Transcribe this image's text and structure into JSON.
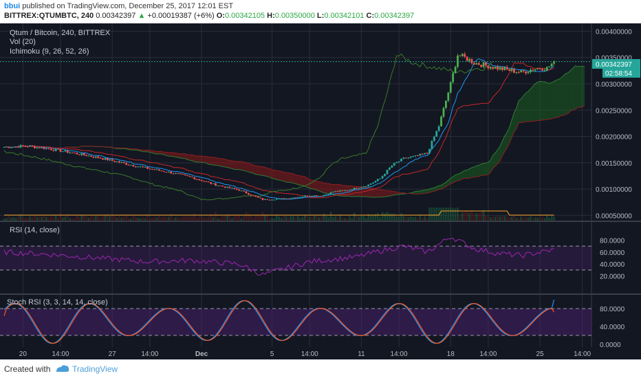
{
  "header": {
    "user": "bbui",
    "published_text": "published on TradingView.com, December 25, 2017 12:01 EST",
    "symbol": "BITTREX:QTUMBTC, 240",
    "last": "0.00342397",
    "change": "+0.00019387 (+6%)",
    "o_label": "O:",
    "o": "0.00342105",
    "h_label": "H:",
    "h": "0.00350000",
    "l_label": "L:",
    "l": "0.00342101",
    "c_label": "C:",
    "c": "0.00342397"
  },
  "legend": {
    "title": "Qtum / Bitcoin, 240, BITTREX",
    "vol": "Vol (20)",
    "ichimoku": "Ichimoku (9, 26, 52, 26)",
    "rsi": "RSI (14, close)",
    "stoch": "Stoch RSI (3, 3, 14, 14, close)"
  },
  "price_axis": {
    "ticks": [
      "0.00400000",
      "0.00350000",
      "0.00300000",
      "0.00250000",
      "0.00200000",
      "0.00150000",
      "0.00100000",
      "0.00050000"
    ],
    "tick_values": [
      0.004,
      0.0035,
      0.003,
      0.0025,
      0.002,
      0.0015,
      0.001,
      0.0005
    ],
    "last_price_label": "0.00342397",
    "countdown_label": "02:58:54"
  },
  "rsi_axis": {
    "ticks": [
      "80.0000",
      "60.0000",
      "40.0000",
      "20.0000"
    ],
    "tick_values": [
      80,
      60,
      40,
      20
    ],
    "bands": [
      70,
      30
    ]
  },
  "stoch_axis": {
    "ticks": [
      "80.0000",
      "40.0000",
      "0.0000"
    ],
    "tick_values": [
      80,
      40,
      0
    ],
    "bands": [
      80,
      20
    ]
  },
  "time_axis": {
    "labels": [
      "20",
      "14:00",
      "27",
      "14:00",
      "Dec",
      "5",
      "14:00",
      "11",
      "14:00",
      "18",
      "14:00",
      "25",
      "14:00"
    ],
    "label_index": [
      8,
      24,
      46,
      62,
      84,
      114,
      130,
      152,
      168,
      190,
      206,
      228,
      246
    ]
  },
  "colors": {
    "background": "#131722",
    "grid": "#2a2e39",
    "up": "#26a69a",
    "up_strong": "#4caf50",
    "down": "#ef5350",
    "tenkan": "#2196f3",
    "kijun": "#c62828",
    "lagging": "#3a7a2a",
    "cloud_green": "#1b5e20",
    "cloud_red": "#8b1a1a",
    "rsi_line": "#9c27b0",
    "stoch_k": "#2196f3",
    "stoch_d": "#ff5722",
    "volume": "#ffa726",
    "last_price": "#26a69a"
  },
  "footer": {
    "created": "Created with",
    "brand": "TradingView"
  },
  "chart_data": {
    "type": "candlestick",
    "title": "Qtum / Bitcoin, 240, BITTREX",
    "timeframe": "4h",
    "x_count": 248,
    "x_start": "2017-11-19T00:00",
    "x_end": "2017-12-25T12:00",
    "y_range": [
      0.0004,
      0.00415
    ],
    "key_points": {
      "index": [
        0,
        10,
        20,
        30,
        40,
        50,
        60,
        70,
        80,
        90,
        100,
        110,
        120,
        125,
        130,
        135,
        140,
        145,
        150,
        155,
        160,
        165,
        170,
        175,
        180,
        185,
        190,
        193,
        196,
        200,
        205,
        210,
        215,
        220,
        225,
        228,
        231,
        234
      ],
      "close": [
        0.0018,
        0.00182,
        0.00176,
        0.00168,
        0.0016,
        0.0015,
        0.0014,
        0.00132,
        0.00122,
        0.00108,
        0.00098,
        0.0008,
        0.00082,
        0.00085,
        0.00088,
        0.00087,
        0.00095,
        0.00097,
        0.00102,
        0.00108,
        0.0012,
        0.00145,
        0.00158,
        0.00162,
        0.00168,
        0.0022,
        0.003,
        0.00355,
        0.0035,
        0.0034,
        0.00335,
        0.0033,
        0.00326,
        0.00322,
        0.00328,
        0.0033,
        0.0033,
        0.00342
      ]
    },
    "last_close": 0.00342397,
    "series": [
      {
        "name": "Vol (20)",
        "type": "volume"
      },
      {
        "name": "Ichimoku (9, 26, 52, 26)",
        "type": "ichimoku"
      },
      {
        "name": "RSI (14, close)",
        "type": "line",
        "range": [
          0,
          100
        ],
        "bands": [
          30,
          70
        ],
        "key_points": {
          "index": [
            0,
            20,
            40,
            60,
            80,
            100,
            110,
            130,
            150,
            160,
            170,
            180,
            190,
            200,
            210,
            220,
            234
          ],
          "value": [
            60,
            56,
            50,
            44,
            46,
            40,
            22,
            44,
            52,
            62,
            70,
            60,
            86,
            66,
            58,
            54,
            64
          ]
        }
      },
      {
        "name": "Stoch RSI (3, 3, 14, 14, close)",
        "type": "line",
        "range": [
          0,
          100
        ],
        "bands": [
          20,
          80
        ]
      }
    ]
  }
}
